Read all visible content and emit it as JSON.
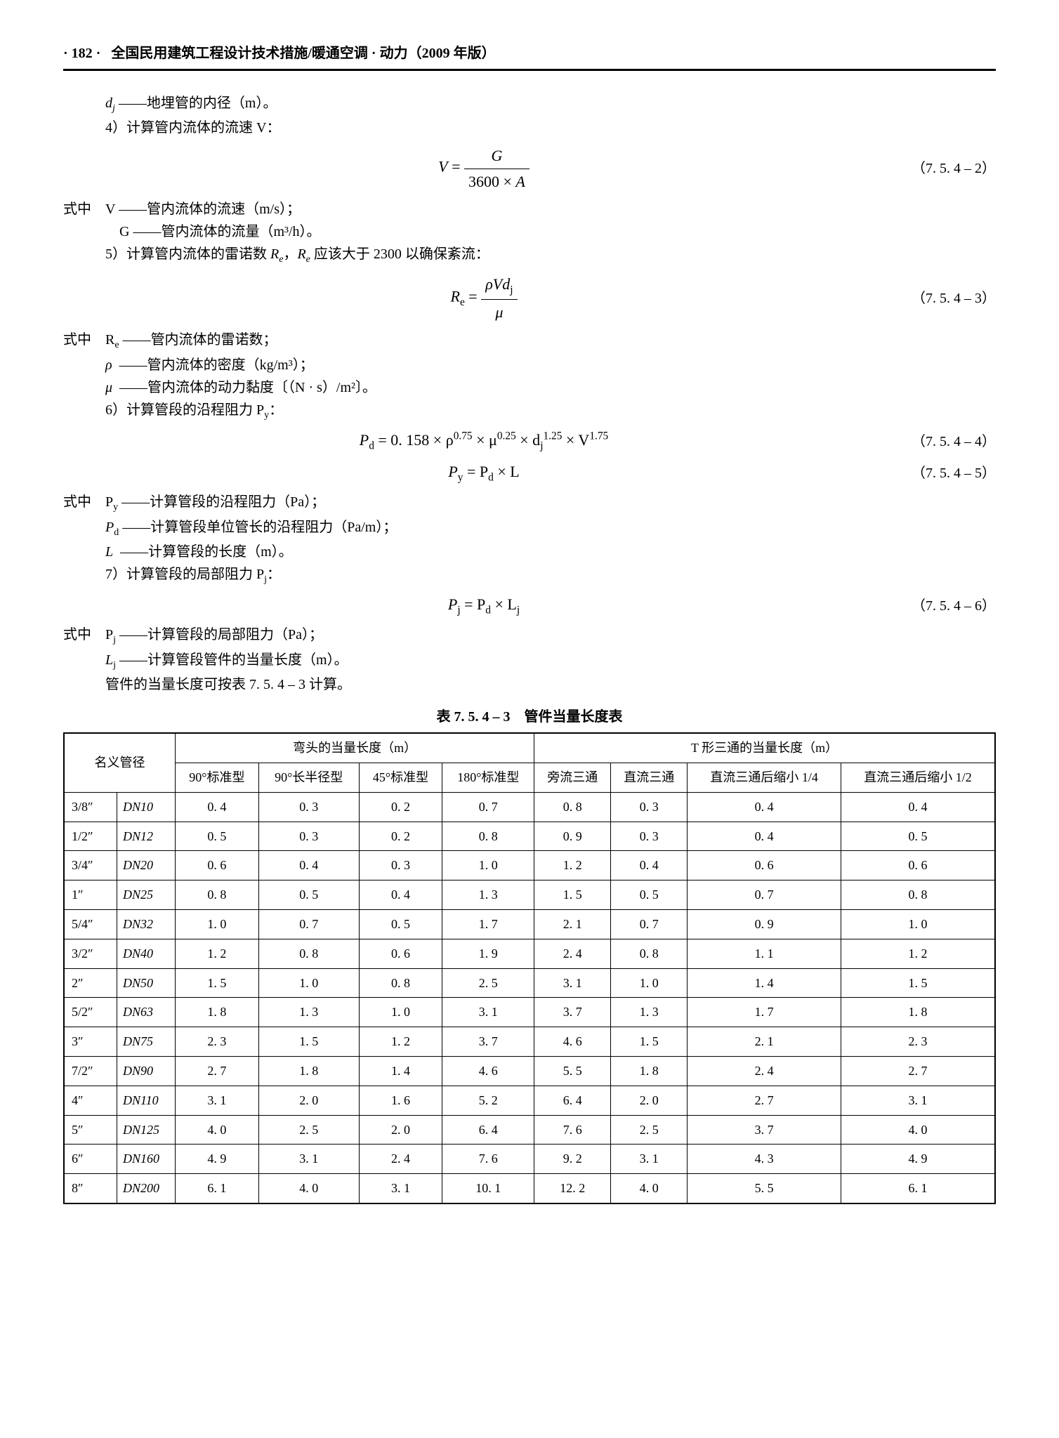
{
  "header": {
    "page_num": "· 182 ·",
    "title": "全国民用建筑工程设计技术措施/暖通空调 · 动力（2009 年版）"
  },
  "lines": {
    "dj_def_sym": "d",
    "dj_def_sub": "j",
    "dj_def_text": " ——地埋管的内径（m）。",
    "item4": "4）计算管内流体的流速 V：",
    "eq2_num": "（7. 5. 4 – 2）",
    "where1": "式中　V ——管内流体的流速（m/s）；",
    "where1b": "G ——管内流体的流量（m³/h）。",
    "item5a": "5）计算管内流体的雷诺数 ",
    "item5b": "，",
    "item5c": " 应该大于 2300 以确保紊流：",
    "Re": "R",
    "Re_sub": "e",
    "eq3_num": "（7. 5. 4 – 3）",
    "where2a": "式中　R",
    "where2a_sub": "e",
    "where2a_txt": " ——管内流体的雷诺数；",
    "where2b_sym": "ρ",
    "where2b_txt": " ——管内流体的密度（kg/m³）；",
    "where2c_sym": "μ",
    "where2c_txt": " ——管内流体的动力黏度〔（N · s）/m²〕。",
    "item6": "6）计算管段的沿程阻力 P",
    "item6_sub": "y",
    "item6_colon": "：",
    "eq4": "P",
    "eq4_d": "d",
    "eq4_rest": " = 0. 158 × ρ",
    "eq4_e1": "0.75",
    "eq4_mu": " × μ",
    "eq4_e2": "0.25",
    "eq4_dj": " × d",
    "eq4_djsub": "j",
    "eq4_e3": "1.25",
    "eq4_v": " × V",
    "eq4_e4": "1.75",
    "eq4_num": "（7. 5. 4 – 4）",
    "eq5": "P",
    "eq5_y": "y",
    "eq5_mid": " = P",
    "eq5_d": "d",
    "eq5_L": " × L",
    "eq5_num": "（7. 5. 4 – 5）",
    "where3a": "式中　P",
    "where3a_sub": "y",
    "where3a_txt": " ——计算管段的沿程阻力（Pa）；",
    "where3b": "P",
    "where3b_sub": "d",
    "where3b_txt": " ——计算管段单位管长的沿程阻力（Pa/m）；",
    "where3c": "L",
    "where3c_txt": " ——计算管段的长度（m）。",
    "item7": "7）计算管段的局部阻力 P",
    "item7_sub": "j",
    "item7_colon": "：",
    "eq6": "P",
    "eq6_j": "j",
    "eq6_mid": " = P",
    "eq6_d": "d",
    "eq6_L": " × L",
    "eq6_Lj": "j",
    "eq6_num": "（7. 5. 4 – 6）",
    "where4a": "式中　P",
    "where4a_sub": "j",
    "where4a_txt": " ——计算管段的局部阻力（Pa）；",
    "where4b": "L",
    "where4b_sub": "j",
    "where4b_txt": " ——计算管段管件的当量长度（m）。",
    "note": "管件的当量长度可按表 7. 5. 4 – 3 计算。"
  },
  "table": {
    "title": "表 7. 5. 4 – 3　管件当量长度表",
    "h_name": "名义管径",
    "h_elbow": "弯头的当量长度（m）",
    "h_tee": "T 形三通的当量长度（m）",
    "h_e90std": "90°标准型",
    "h_e90long": "90°长半径型",
    "h_e45std": "45°标准型",
    "h_e180std": "180°标准型",
    "h_t_side": "旁流三通",
    "h_t_run": "直流三通",
    "h_t_red14": "直流三通后缩小 1/4",
    "h_t_red12": "直流三通后缩小 1/2",
    "rows": [
      [
        "3/8″",
        "DN10",
        "0. 4",
        "0. 3",
        "0. 2",
        "0. 7",
        "0. 8",
        "0. 3",
        "0. 4",
        "0. 4"
      ],
      [
        "1/2″",
        "DN12",
        "0. 5",
        "0. 3",
        "0. 2",
        "0. 8",
        "0. 9",
        "0. 3",
        "0. 4",
        "0. 5"
      ],
      [
        "3/4″",
        "DN20",
        "0. 6",
        "0. 4",
        "0. 3",
        "1. 0",
        "1. 2",
        "0. 4",
        "0. 6",
        "0. 6"
      ],
      [
        "1″",
        "DN25",
        "0. 8",
        "0. 5",
        "0. 4",
        "1. 3",
        "1. 5",
        "0. 5",
        "0. 7",
        "0. 8"
      ],
      [
        "5/4″",
        "DN32",
        "1. 0",
        "0. 7",
        "0. 5",
        "1. 7",
        "2. 1",
        "0. 7",
        "0. 9",
        "1. 0"
      ],
      [
        "3/2″",
        "DN40",
        "1. 2",
        "0. 8",
        "0. 6",
        "1. 9",
        "2. 4",
        "0. 8",
        "1. 1",
        "1. 2"
      ],
      [
        "2″",
        "DN50",
        "1. 5",
        "1. 0",
        "0. 8",
        "2. 5",
        "3. 1",
        "1. 0",
        "1. 4",
        "1. 5"
      ],
      [
        "5/2″",
        "DN63",
        "1. 8",
        "1. 3",
        "1. 0",
        "3. 1",
        "3. 7",
        "1. 3",
        "1. 7",
        "1. 8"
      ],
      [
        "3″",
        "DN75",
        "2. 3",
        "1. 5",
        "1. 2",
        "3. 7",
        "4. 6",
        "1. 5",
        "2. 1",
        "2. 3"
      ],
      [
        "7/2″",
        "DN90",
        "2. 7",
        "1. 8",
        "1. 4",
        "4. 6",
        "5. 5",
        "1. 8",
        "2. 4",
        "2. 7"
      ],
      [
        "4″",
        "DN110",
        "3. 1",
        "2. 0",
        "1. 6",
        "5. 2",
        "6. 4",
        "2. 0",
        "2. 7",
        "3. 1"
      ],
      [
        "5″",
        "DN125",
        "4. 0",
        "2. 5",
        "2. 0",
        "6. 4",
        "7. 6",
        "2. 5",
        "3. 7",
        "4. 0"
      ],
      [
        "6″",
        "DN160",
        "4. 9",
        "3. 1",
        "2. 4",
        "7. 6",
        "9. 2",
        "3. 1",
        "4. 3",
        "4. 9"
      ],
      [
        "8″",
        "DN200",
        "6. 1",
        "4. 0",
        "3. 1",
        "10. 1",
        "12. 2",
        "4. 0",
        "5. 5",
        "6. 1"
      ]
    ]
  }
}
